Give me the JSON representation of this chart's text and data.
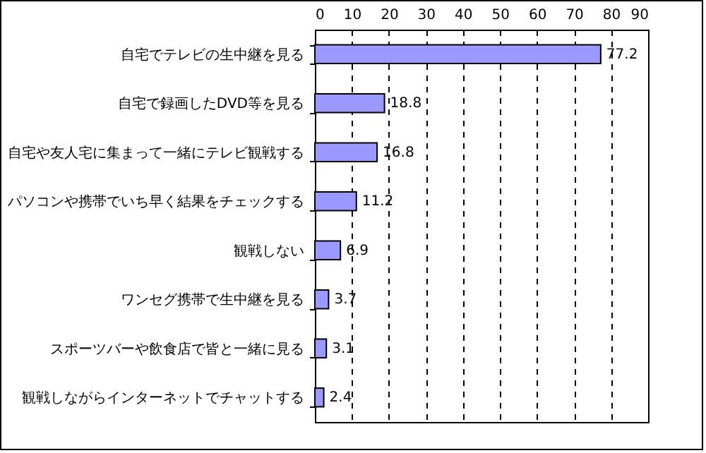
{
  "chart_data": {
    "type": "bar",
    "orientation": "horizontal",
    "categories": [
      "自宅でテレビの生中継を見る",
      "自宅で録画したDVD等を見る",
      "自宅や友人宅に集まって一緒にテレビ観戦する",
      "パソコンや携帯でいち早く結果をチェックする",
      "観戦しない",
      "ワンセグ携帯で生中継を見る",
      "スポーツバーや飲食店で皆と一緒に見る",
      "観戦しながらインターネットでチャットする"
    ],
    "values": [
      77.2,
      18.8,
      16.8,
      11.2,
      6.9,
      3.7,
      3.1,
      2.4
    ],
    "color": "#9999ff",
    "xlim": [
      0,
      90
    ],
    "xticks": [
      0,
      10,
      20,
      30,
      40,
      50,
      60,
      70,
      80,
      90
    ],
    "grid": "x",
    "line_style": "dashed",
    "data_labels": true
  }
}
